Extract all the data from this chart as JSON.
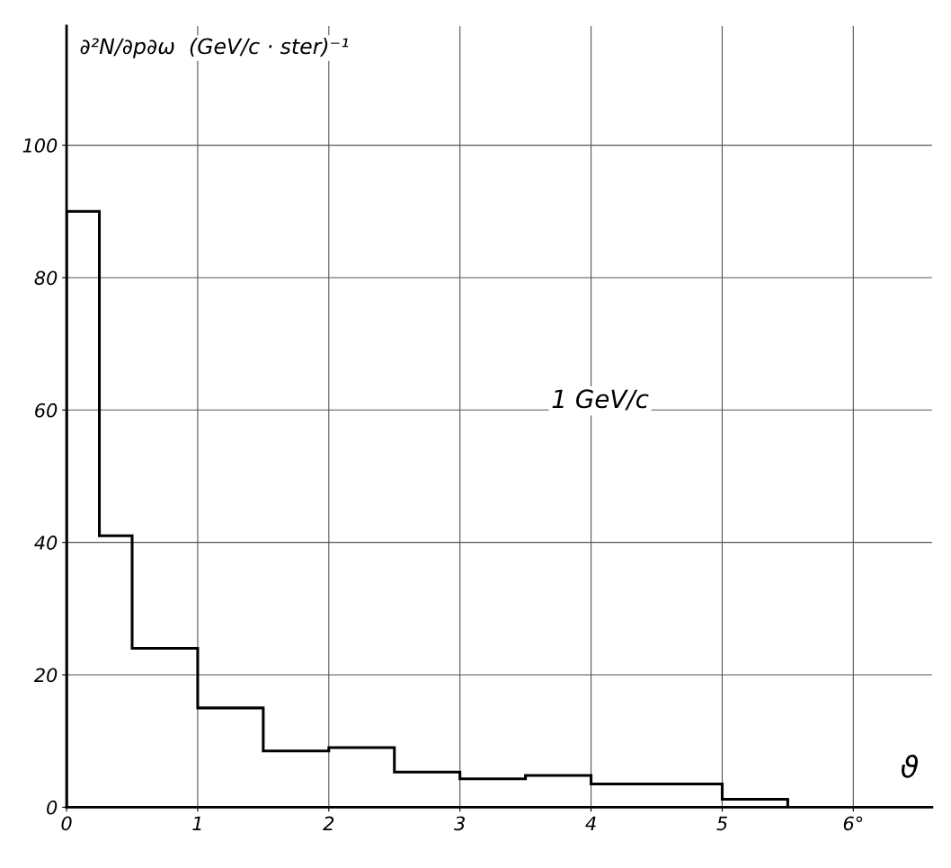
{
  "chart_data": {
    "type": "histogram",
    "xlabel": "ϑ",
    "ylabel": "∂²N/∂p∂ω  (GeV/c · ster)⁻¹",
    "annotations": [
      "1 GeV/c"
    ],
    "bins": [
      0,
      0.25,
      0.5,
      1,
      1.5,
      2,
      2.5,
      3,
      3.5,
      4,
      5,
      5.5
    ],
    "values": [
      90,
      41,
      24,
      15,
      8.5,
      9,
      5.3,
      4.3,
      4.8,
      3.5,
      1.2
    ],
    "color": "#000000",
    "xlim": [
      0,
      6.6
    ],
    "ylim": [
      0,
      118
    ],
    "xticks": [
      0,
      1,
      2,
      3,
      4,
      5,
      {
        "value": 6,
        "label": "6°"
      }
    ],
    "yticks": [
      0,
      20,
      40,
      60,
      80,
      100
    ],
    "grid": true
  }
}
